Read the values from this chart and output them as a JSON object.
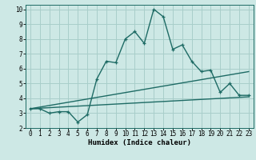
{
  "xlabel": "Humidex (Indice chaleur)",
  "xlim": [
    -0.5,
    23.5
  ],
  "ylim": [
    2,
    10.3
  ],
  "xticks": [
    0,
    1,
    2,
    3,
    4,
    5,
    6,
    7,
    8,
    9,
    10,
    11,
    12,
    13,
    14,
    15,
    16,
    17,
    18,
    19,
    20,
    21,
    22,
    23
  ],
  "yticks": [
    2,
    3,
    4,
    5,
    6,
    7,
    8,
    9,
    10
  ],
  "bg_color": "#cde8e5",
  "grid_color": "#a8ceca",
  "line_color": "#1e6b65",
  "line1_x": [
    0,
    1,
    2,
    3,
    4,
    5,
    6,
    7,
    8,
    9,
    10,
    11,
    12,
    13,
    14,
    15,
    16,
    17,
    18,
    19,
    20,
    21,
    22,
    23
  ],
  "line1_y": [
    3.3,
    3.3,
    3.0,
    3.1,
    3.1,
    2.4,
    2.9,
    5.3,
    6.5,
    6.4,
    8.0,
    8.5,
    7.7,
    10.0,
    9.5,
    7.3,
    7.6,
    6.5,
    5.8,
    5.9,
    4.4,
    5.0,
    4.2,
    4.2
  ],
  "line2_x": [
    0,
    23
  ],
  "line2_y": [
    3.3,
    5.8
  ],
  "line3_x": [
    0,
    23
  ],
  "line3_y": [
    3.3,
    4.1
  ],
  "marker_size": 2.8,
  "line_width": 1.0,
  "font_size_axis": 6.5,
  "font_size_tick": 5.5
}
